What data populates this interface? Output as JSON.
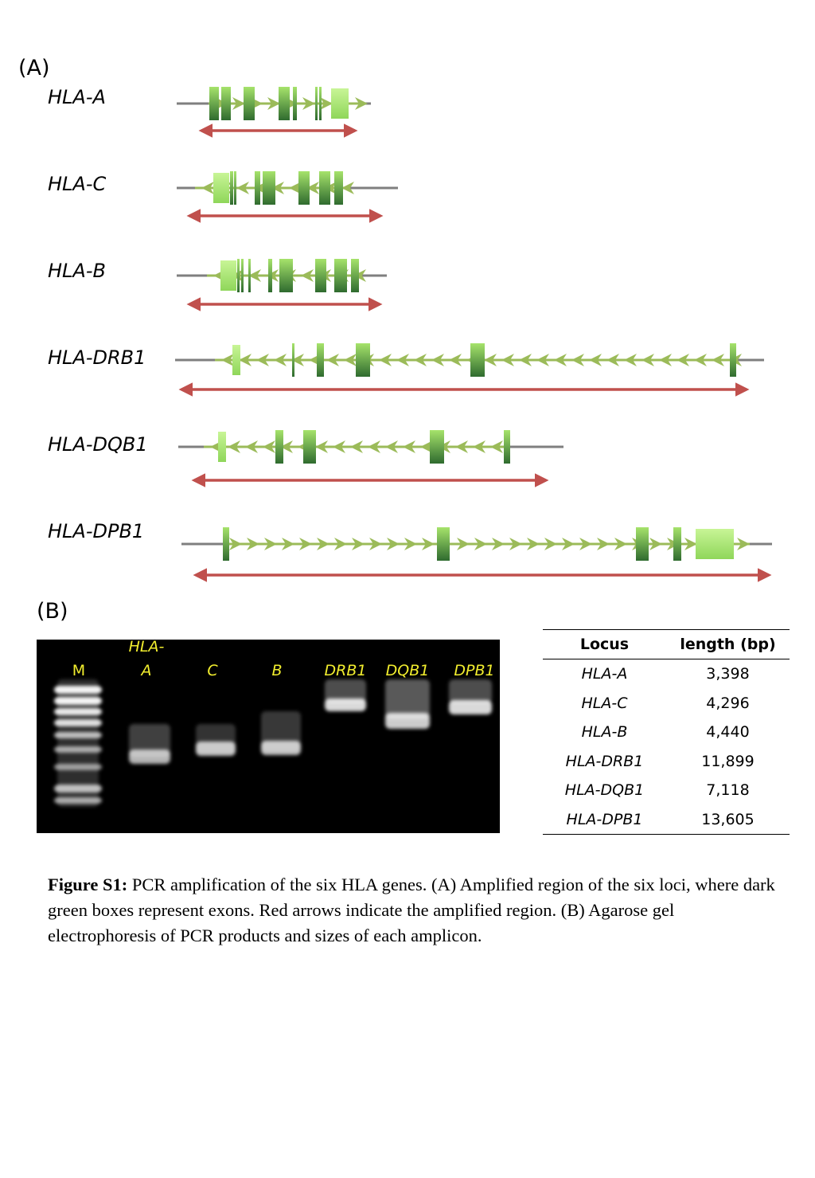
{
  "panel_a_label": "(A)",
  "panel_b_label": "(B)",
  "genes": [
    {
      "name": "HLA-A"
    },
    {
      "name": "HLA-C"
    },
    {
      "name": "HLA-B"
    },
    {
      "name": "HLA-DRB1"
    },
    {
      "name": "HLA-DQB1"
    },
    {
      "name": "HLA-DPB1"
    }
  ],
  "gel": {
    "lanes": [
      {
        "label_top": "",
        "label": "M"
      },
      {
        "label_top": "HLA-",
        "label": "A"
      },
      {
        "label_top": "",
        "label": "C"
      },
      {
        "label_top": "",
        "label": "B"
      },
      {
        "label_top": "",
        "label": "DRB1"
      },
      {
        "label_top": "",
        "label": "DQB1"
      },
      {
        "label_top": "",
        "label": "DPB1"
      }
    ]
  },
  "table": {
    "headers": [
      "Locus",
      "length (bp)"
    ],
    "rows": [
      [
        "HLA-A",
        "3,398"
      ],
      [
        "HLA-C",
        "4,296"
      ],
      [
        "HLA-B",
        "4,440"
      ],
      [
        "HLA-DRB1",
        "11,899"
      ],
      [
        "HLA-DQB1",
        "7,118"
      ],
      [
        "HLA-DPB1",
        "13,605"
      ]
    ]
  },
  "caption": {
    "label": "Figure S1:",
    "text": " PCR amplification of the six HLA genes. (A) Amplified region of the six loci, where dark green boxes represent exons. Red arrows indicate the amplified region. (B) Agarose gel electrophoresis of PCR products and sizes of each amplicon."
  },
  "colors": {
    "intron_line": "#7f7f7f",
    "exon_dark": "#2f6b2f",
    "exon_light": "#a6e36b",
    "arrow_green": "#9bbb59",
    "amplicon_red": "#c0504d",
    "gel_label_yellow": "#f2ee2e"
  }
}
